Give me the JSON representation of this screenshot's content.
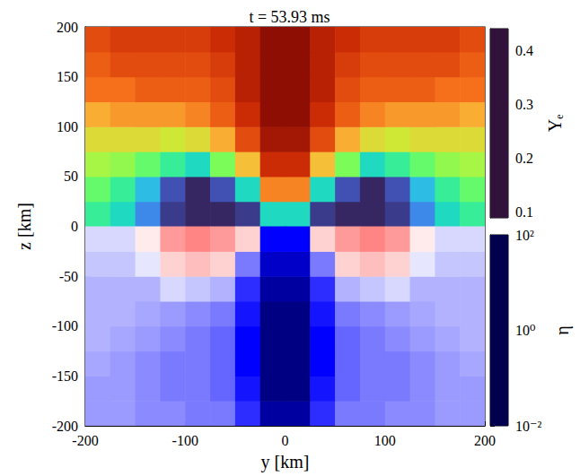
{
  "chart_data": {
    "type": "heatmap",
    "title": "t = 53.93 ms",
    "x_label": "y [km]",
    "y_label": "z [km]",
    "xlim": [
      -200,
      200
    ],
    "xticks": [
      -200,
      -100,
      0,
      100,
      200
    ],
    "ylim": [
      -200,
      200
    ],
    "yticks": [
      -200,
      -150,
      -100,
      -50,
      0,
      50,
      100,
      150,
      200
    ],
    "x_edges": [
      -200,
      -175,
      -150,
      -125,
      -100,
      -75,
      -50,
      -25,
      0,
      25,
      50,
      75,
      100,
      125,
      150,
      175,
      200
    ],
    "panels": [
      {
        "name": "Yₑ",
        "z_edges": [
          0,
          25,
          50,
          75,
          100,
          125,
          150,
          175,
          200
        ],
        "cells": [
          [
            0.22,
            0.2,
            0.15,
            0.11,
            0.1,
            0.1,
            0.11,
            0.2,
            0.2,
            0.11,
            0.1,
            0.1,
            0.11,
            0.15,
            0.2,
            0.22
          ],
          [
            0.24,
            0.22,
            0.18,
            0.12,
            0.1,
            0.12,
            0.2,
            0.35,
            0.35,
            0.2,
            0.12,
            0.1,
            0.12,
            0.18,
            0.22,
            0.24
          ],
          [
            0.27,
            0.26,
            0.24,
            0.22,
            0.2,
            0.25,
            0.32,
            0.4,
            0.4,
            0.32,
            0.25,
            0.2,
            0.22,
            0.24,
            0.26,
            0.27
          ],
          [
            0.3,
            0.3,
            0.3,
            0.29,
            0.3,
            0.33,
            0.38,
            0.42,
            0.42,
            0.38,
            0.33,
            0.3,
            0.29,
            0.3,
            0.3,
            0.3
          ],
          [
            0.33,
            0.34,
            0.34,
            0.34,
            0.35,
            0.37,
            0.4,
            0.43,
            0.43,
            0.4,
            0.37,
            0.35,
            0.34,
            0.34,
            0.34,
            0.33
          ],
          [
            0.36,
            0.36,
            0.37,
            0.37,
            0.37,
            0.38,
            0.41,
            0.43,
            0.43,
            0.41,
            0.38,
            0.37,
            0.37,
            0.37,
            0.36,
            0.36
          ],
          [
            0.37,
            0.38,
            0.38,
            0.38,
            0.38,
            0.39,
            0.41,
            0.43,
            0.43,
            0.41,
            0.39,
            0.38,
            0.38,
            0.38,
            0.38,
            0.37
          ],
          [
            0.38,
            0.39,
            0.39,
            0.39,
            0.39,
            0.4,
            0.41,
            0.43,
            0.43,
            0.41,
            0.4,
            0.39,
            0.39,
            0.39,
            0.39,
            0.38
          ]
        ],
        "colorbar_range": [
          0.09,
          0.44
        ],
        "colorbar_ticks": [
          0.1,
          0.2,
          0.3,
          0.4
        ]
      },
      {
        "name": "η",
        "log": true,
        "z_edges": [
          -200,
          -175,
          -150,
          -125,
          -100,
          -75,
          -50,
          -25,
          0
        ],
        "cells": [
          [
            0.4,
            0.4,
            0.35,
            0.35,
            0.3,
            0.3,
            0.15,
            0.03,
            0.03,
            0.15,
            0.3,
            0.3,
            0.35,
            0.35,
            0.4,
            0.4
          ],
          [
            0.4,
            0.4,
            0.35,
            0.3,
            0.3,
            0.25,
            0.12,
            0.02,
            0.02,
            0.12,
            0.25,
            0.3,
            0.3,
            0.35,
            0.4,
            0.4
          ],
          [
            0.45,
            0.4,
            0.35,
            0.3,
            0.3,
            0.25,
            0.1,
            0.02,
            0.02,
            0.1,
            0.25,
            0.3,
            0.3,
            0.35,
            0.4,
            0.45
          ],
          [
            0.5,
            0.45,
            0.4,
            0.35,
            0.3,
            0.25,
            0.1,
            0.02,
            0.02,
            0.1,
            0.25,
            0.3,
            0.35,
            0.4,
            0.45,
            0.5
          ],
          [
            0.5,
            0.5,
            0.45,
            0.4,
            0.35,
            0.3,
            0.12,
            0.02,
            0.02,
            0.12,
            0.3,
            0.35,
            0.4,
            0.45,
            0.5,
            0.5
          ],
          [
            0.5,
            0.5,
            0.5,
            0.7,
            0.6,
            0.5,
            0.15,
            0.03,
            0.03,
            0.15,
            0.5,
            0.6,
            0.7,
            0.5,
            0.5,
            0.5
          ],
          [
            0.6,
            0.6,
            0.8,
            1.5,
            1.8,
            1.5,
            0.3,
            0.05,
            0.05,
            0.3,
            1.5,
            1.8,
            1.5,
            0.8,
            0.6,
            0.6
          ],
          [
            0.7,
            0.7,
            1.2,
            2.5,
            3,
            2.5,
            1.5,
            0.1,
            0.1,
            1.5,
            2.5,
            3,
            2.5,
            1.2,
            0.7,
            0.7
          ]
        ],
        "colorbar_range": [
          0.01,
          100
        ],
        "colorbar_ticks": [
          {
            "value": 0.01,
            "label": "10⁻²"
          },
          {
            "value": 1,
            "label": "10⁰"
          },
          {
            "value": 100,
            "label": "10²"
          }
        ]
      }
    ]
  }
}
